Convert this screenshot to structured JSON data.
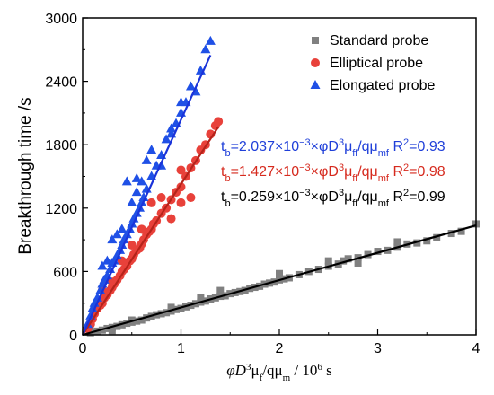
{
  "chart_data": {
    "type": "scatter",
    "xlabel_main": "φD",
    "xlabel_sup1": "3",
    "xlabel_mid": "μ",
    "xlabel_sub1": "f",
    "xlabel_mid2": "/qμ",
    "xlabel_sub2": "m",
    "xlabel_unit": " / 10",
    "xlabel_sup2": "6",
    "xlabel_end": " s",
    "ylabel": "Breakthrough time /s",
    "xlim": [
      0,
      4
    ],
    "ylim": [
      0,
      3000
    ],
    "x_ticks": [
      "0",
      "1",
      "2",
      "3",
      "4"
    ],
    "y_ticks": [
      "0",
      "600",
      "1200",
      "1800",
      "2400",
      "3000"
    ],
    "legend_position": "top-right",
    "series": [
      {
        "name": "Standard probe",
        "marker": "square",
        "color": "#808080",
        "fit_slope": 259,
        "points": [
          [
            0.08,
            20
          ],
          [
            0.12,
            30
          ],
          [
            0.15,
            35
          ],
          [
            0.2,
            45
          ],
          [
            0.25,
            60
          ],
          [
            0.3,
            70
          ],
          [
            0.35,
            80
          ],
          [
            0.4,
            95
          ],
          [
            0.45,
            110
          ],
          [
            0.5,
            120
          ],
          [
            0.55,
            130
          ],
          [
            0.6,
            140
          ],
          [
            0.65,
            160
          ],
          [
            0.7,
            175
          ],
          [
            0.75,
            190
          ],
          [
            0.8,
            200
          ],
          [
            0.85,
            210
          ],
          [
            0.9,
            225
          ],
          [
            0.95,
            240
          ],
          [
            1.0,
            250
          ],
          [
            1.05,
            265
          ],
          [
            1.1,
            280
          ],
          [
            1.15,
            295
          ],
          [
            1.2,
            310
          ],
          [
            1.25,
            320
          ],
          [
            1.3,
            340
          ],
          [
            1.35,
            350
          ],
          [
            1.4,
            365
          ],
          [
            1.45,
            370
          ],
          [
            1.5,
            390
          ],
          [
            1.55,
            400
          ],
          [
            1.6,
            410
          ],
          [
            1.65,
            420
          ],
          [
            1.7,
            440
          ],
          [
            1.75,
            450
          ],
          [
            1.8,
            460
          ],
          [
            1.85,
            480
          ],
          [
            1.9,
            490
          ],
          [
            1.95,
            500
          ],
          [
            2.0,
            520
          ],
          [
            2.05,
            530
          ],
          [
            2.1,
            540
          ],
          [
            2.2,
            570
          ],
          [
            2.3,
            600
          ],
          [
            2.4,
            620
          ],
          [
            2.5,
            650
          ],
          [
            2.6,
            670
          ],
          [
            2.65,
            700
          ],
          [
            2.7,
            720
          ],
          [
            2.8,
            730
          ],
          [
            2.9,
            760
          ],
          [
            3.0,
            790
          ],
          [
            3.1,
            800
          ],
          [
            3.2,
            830
          ],
          [
            3.3,
            860
          ],
          [
            3.4,
            870
          ],
          [
            3.5,
            890
          ],
          [
            3.6,
            920
          ],
          [
            3.75,
            960
          ],
          [
            3.85,
            980
          ],
          [
            4.0,
            1050
          ],
          [
            0.5,
            140
          ],
          [
            0.9,
            260
          ],
          [
            1.2,
            350
          ],
          [
            1.4,
            420
          ],
          [
            2.0,
            580
          ],
          [
            2.5,
            700
          ],
          [
            2.8,
            680
          ],
          [
            3.2,
            880
          ],
          [
            0.3,
            40
          ]
        ]
      },
      {
        "name": "Elliptical probe",
        "marker": "circle",
        "color": "#e8413a",
        "fit_slope": 1427,
        "points": [
          [
            0.05,
            60
          ],
          [
            0.08,
            100
          ],
          [
            0.1,
            150
          ],
          [
            0.12,
            200
          ],
          [
            0.15,
            250
          ],
          [
            0.18,
            280
          ],
          [
            0.2,
            300
          ],
          [
            0.22,
            350
          ],
          [
            0.25,
            380
          ],
          [
            0.28,
            420
          ],
          [
            0.3,
            450
          ],
          [
            0.32,
            480
          ],
          [
            0.35,
            520
          ],
          [
            0.38,
            560
          ],
          [
            0.4,
            600
          ],
          [
            0.42,
            620
          ],
          [
            0.45,
            650
          ],
          [
            0.48,
            700
          ],
          [
            0.5,
            720
          ],
          [
            0.52,
            760
          ],
          [
            0.55,
            800
          ],
          [
            0.58,
            820
          ],
          [
            0.6,
            860
          ],
          [
            0.62,
            900
          ],
          [
            0.65,
            950
          ],
          [
            0.68,
            980
          ],
          [
            0.7,
            1000
          ],
          [
            0.72,
            1050
          ],
          [
            0.75,
            1080
          ],
          [
            0.8,
            1150
          ],
          [
            0.85,
            1200
          ],
          [
            0.9,
            1280
          ],
          [
            0.95,
            1350
          ],
          [
            1.0,
            1400
          ],
          [
            1.05,
            1500
          ],
          [
            1.1,
            1580
          ],
          [
            1.15,
            1650
          ],
          [
            1.2,
            1750
          ],
          [
            1.25,
            1800
          ],
          [
            1.3,
            1900
          ],
          [
            1.35,
            1980
          ],
          [
            1.38,
            2020
          ],
          [
            0.3,
            500
          ],
          [
            0.5,
            850
          ],
          [
            0.6,
            1000
          ],
          [
            0.4,
            700
          ],
          [
            0.7,
            1250
          ],
          [
            0.8,
            1300
          ],
          [
            0.9,
            1100
          ],
          [
            1.0,
            1250
          ],
          [
            1.1,
            1300
          ],
          [
            1.0,
            1560
          ],
          [
            0.2,
            420
          ],
          [
            0.15,
            300
          ]
        ]
      },
      {
        "name": "Elongated probe",
        "marker": "triangle",
        "color": "#1f50e6",
        "fit_slope": 2037,
        "points": [
          [
            0.05,
            100
          ],
          [
            0.08,
            180
          ],
          [
            0.1,
            250
          ],
          [
            0.12,
            300
          ],
          [
            0.15,
            350
          ],
          [
            0.18,
            420
          ],
          [
            0.2,
            480
          ],
          [
            0.22,
            520
          ],
          [
            0.25,
            560
          ],
          [
            0.28,
            620
          ],
          [
            0.3,
            680
          ],
          [
            0.32,
            700
          ],
          [
            0.35,
            750
          ],
          [
            0.38,
            800
          ],
          [
            0.4,
            850
          ],
          [
            0.42,
            900
          ],
          [
            0.45,
            950
          ],
          [
            0.48,
            1000
          ],
          [
            0.5,
            1050
          ],
          [
            0.52,
            1100
          ],
          [
            0.55,
            1150
          ],
          [
            0.58,
            1200
          ],
          [
            0.6,
            1250
          ],
          [
            0.62,
            1300
          ],
          [
            0.65,
            1380
          ],
          [
            0.7,
            1500
          ],
          [
            0.75,
            1600
          ],
          [
            0.8,
            1700
          ],
          [
            0.85,
            1850
          ],
          [
            0.9,
            1950
          ],
          [
            0.95,
            2000
          ],
          [
            1.0,
            2100
          ],
          [
            1.05,
            2200
          ],
          [
            1.1,
            2350
          ],
          [
            1.2,
            2500
          ],
          [
            1.25,
            2700
          ],
          [
            1.3,
            2780
          ],
          [
            0.45,
            1450
          ],
          [
            0.55,
            1480
          ],
          [
            0.6,
            1450
          ],
          [
            0.65,
            1650
          ],
          [
            0.7,
            1750
          ],
          [
            0.3,
            900
          ],
          [
            0.35,
            950
          ],
          [
            0.2,
            650
          ],
          [
            0.25,
            700
          ],
          [
            0.5,
            1250
          ],
          [
            0.55,
            1350
          ],
          [
            1.0,
            2200
          ],
          [
            1.15,
            2300
          ],
          [
            0.9,
            1900
          ],
          [
            0.8,
            1600
          ],
          [
            0.4,
            1000
          ]
        ]
      }
    ],
    "equations": [
      {
        "t": "t",
        "tsub": "b",
        "mid": "=2.037×10",
        "exp": "−3",
        "mid2": "×φD",
        "sup": "3",
        "mu": "μ",
        "musub": "ff",
        "q": "/qμ",
        "qsub": "mf",
        "r2": " R",
        "r2sup": "2",
        "r2val": "=0.93",
        "color": "#1f3fd9"
      },
      {
        "t": "t",
        "tsub": "b",
        "mid": "=1.427×10",
        "exp": "−3",
        "mid2": "×φD",
        "sup": "3",
        "mu": "μ",
        "musub": "ff",
        "q": "/qμ",
        "qsub": "mf",
        "r2": " R",
        "r2sup": "2",
        "r2val": "=0.98",
        "color": "#d62a1e"
      },
      {
        "t": "t",
        "tsub": "b",
        "mid": "=0.259×10",
        "exp": "−3",
        "mid2": "×φD",
        "sup": "3",
        "mu": "μ",
        "musub": "ff",
        "q": "/qμ",
        "qsub": "mf",
        "r2": " R",
        "r2sup": "2",
        "r2val": "=0.99",
        "color": "#000000"
      }
    ]
  }
}
